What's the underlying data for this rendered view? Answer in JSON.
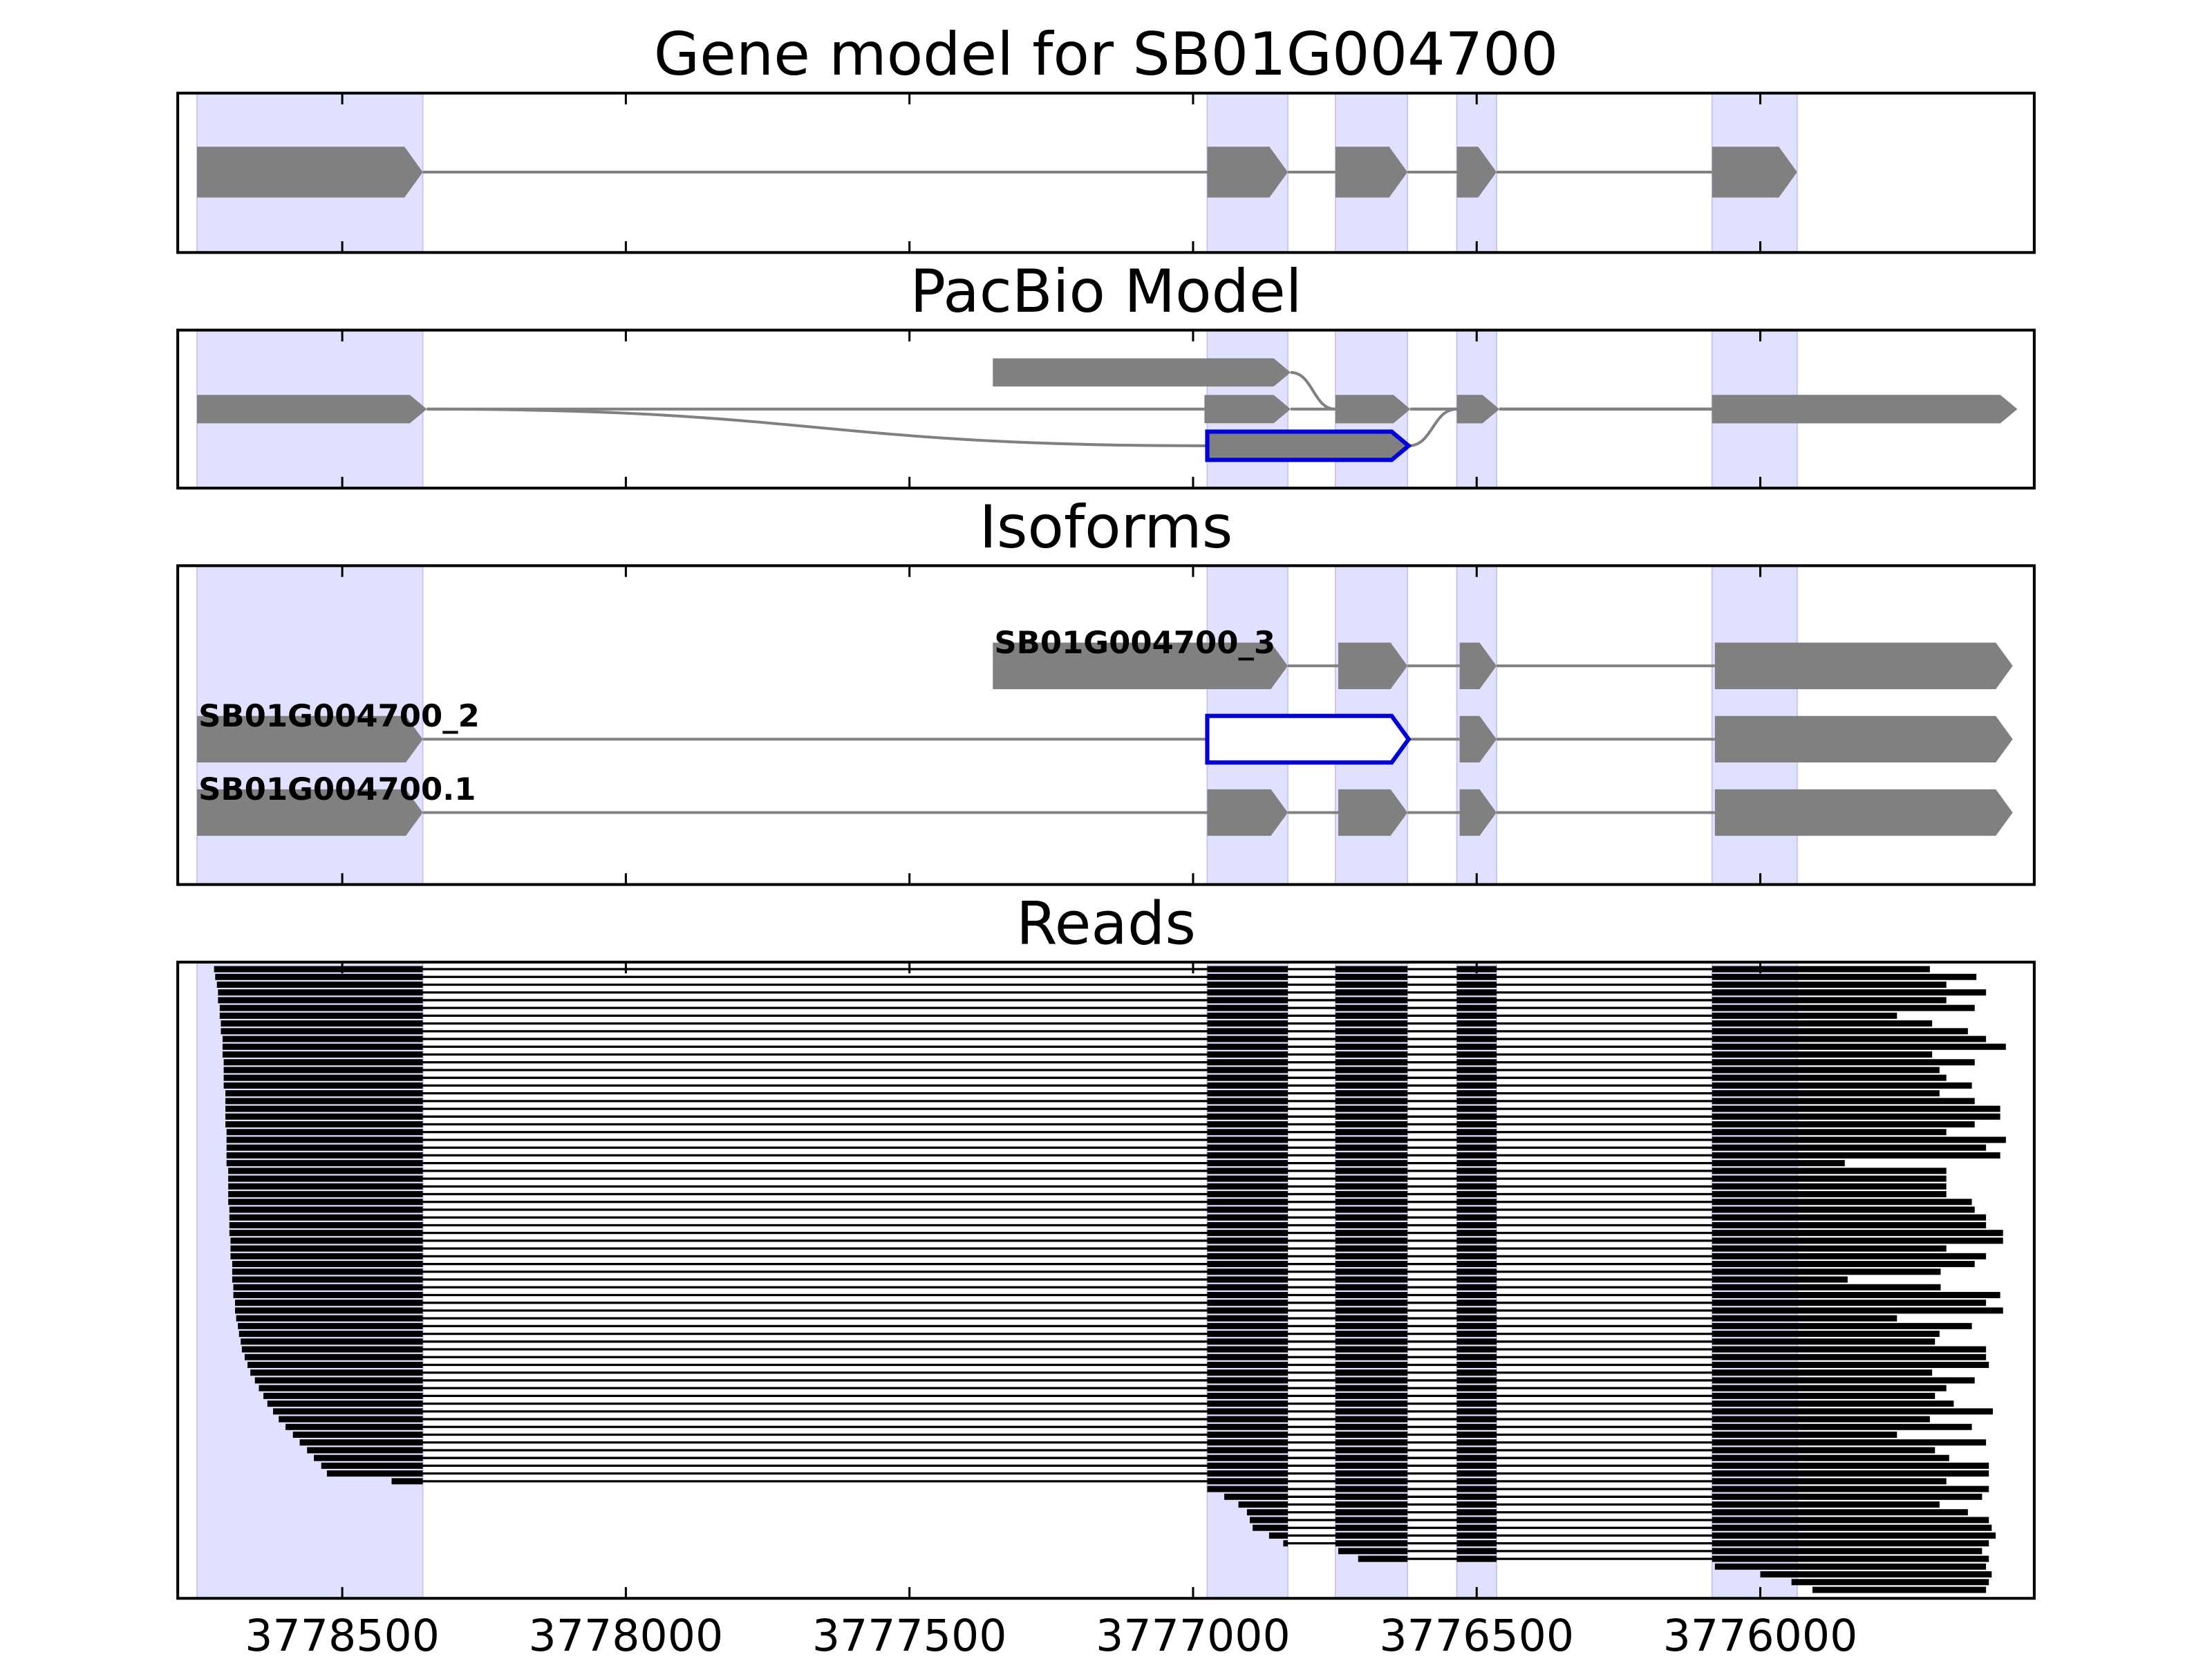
{
  "chart_data": {
    "type": "gene-model",
    "xlim": [
      3778790,
      3775517
    ],
    "xticks": [
      3778500,
      3778000,
      3777500,
      3777000,
      3776500,
      3776000
    ],
    "exon_color": "#808080",
    "shade_color": "#e0e0ff",
    "highlight_color": "#0000dd",
    "read_color": "#000000",
    "gene_model": {
      "title": "Gene model for SB01G004700",
      "exons": [
        [
          3778756,
          3778358
        ],
        [
          3776975,
          3776833
        ],
        [
          3776749,
          3776622
        ],
        [
          3776535,
          3776465
        ],
        [
          3776085,
          3775935
        ]
      ]
    },
    "pacbio_model": {
      "title": "PacBio Model",
      "paths": [
        [
          [
            3778756,
            3778351
          ],
          [
            3776980,
            3776828
          ],
          [
            3776749,
            3776617
          ],
          [
            3776535,
            3776460
          ],
          [
            3776085,
            3775547
          ]
        ],
        [
          [
            3777353,
            3776828
          ],
          [
            3776749,
            3776617
          ],
          [
            3776535,
            3776460
          ],
          [
            3776085,
            3775547
          ]
        ],
        [
          [
            3778756,
            3778351
          ],
          [
            3776975,
            3776620
          ],
          [
            3776535,
            3776460
          ],
          [
            3776085,
            3775547
          ]
        ]
      ],
      "highlight_exon": [
        3776975,
        3776620
      ]
    },
    "isoforms": {
      "title": "Isoforms",
      "items": [
        {
          "name": "SB01G004700_3",
          "exons": [
            [
              3777353,
              3776833
            ],
            [
              3776744,
              3776622
            ],
            [
              3776530,
              3776465
            ],
            [
              3776080,
              3775555
            ]
          ]
        },
        {
          "name": "SB01G004700_2",
          "exons": [
            [
              3778756,
              3778358
            ],
            [
              3776975,
              3776620
            ],
            [
              3776530,
              3776465
            ],
            [
              3776080,
              3775555
            ]
          ]
        },
        {
          "name": "SB01G004700.1",
          "exons": [
            [
              3778756,
              3778358
            ],
            [
              3776975,
              3776833
            ],
            [
              3776744,
              3776622
            ],
            [
              3776530,
              3776465
            ],
            [
              3776080,
              3775555
            ]
          ]
        }
      ]
    },
    "reads": {
      "title": "Reads",
      "starts": [
        3778726,
        3778724,
        3778721,
        3778719,
        3778719,
        3778716,
        3778716,
        3778714,
        3778714,
        3778711,
        3778711,
        3778711,
        3778709,
        3778709,
        3778709,
        3778709,
        3778706,
        3778706,
        3778706,
        3778706,
        3778706,
        3778704,
        3778704,
        3778704,
        3778704,
        3778704,
        3778701,
        3778701,
        3778701,
        3778701,
        3778701,
        3778699,
        3778699,
        3778699,
        3778699,
        3778697,
        3778697,
        3778697,
        3778694,
        3778694,
        3778694,
        3778692,
        3778692,
        3778689,
        3778689,
        3778687,
        3778684,
        3778682,
        3778679,
        3778677,
        3778672,
        3778667,
        3778662,
        3778654,
        3778647,
        3778639,
        3778632,
        3778622,
        3778612,
        3778600,
        3778587,
        3778575,
        3778562,
        3778550,
        3778537,
        3778527,
        3778413,
        3776978,
        3776945,
        3776920,
        3776905,
        3776900,
        3776895,
        3776866,
        3776841,
        3776744,
        3776709,
        3776080,
        3776000,
        3775945,
        3775908
      ],
      "ends": [
        3775701,
        3775619,
        3775672,
        3775602,
        3775672,
        3775622,
        3775759,
        3775697,
        3775634,
        3775602,
        3775567,
        3775697,
        3775622,
        3775684,
        3775672,
        3775627,
        3775684,
        3775622,
        3775577,
        3775577,
        3775622,
        3775672,
        3775567,
        3775602,
        3775577,
        3775851,
        3775672,
        3775672,
        3775672,
        3775672,
        3775627,
        3775622,
        3775602,
        3775602,
        3775572,
        3775572,
        3775672,
        3775602,
        3775622,
        3775682,
        3775846,
        3775682,
        3775577,
        3775602,
        3775572,
        3775759,
        3775627,
        3775684,
        3775692,
        3775602,
        3775602,
        3775597,
        3775697,
        3775622,
        3775672,
        3775692,
        3775659,
        3775590,
        3775701,
        3775627,
        3775759,
        3775602,
        3775692,
        3775667,
        3775597,
        3775597,
        3775672,
        3775597,
        3775609,
        3775684,
        3775634,
        3775597,
        3775592,
        3775585,
        3775597,
        3775609,
        3775597,
        3775602,
        3775592,
        3775597,
        3775602
      ]
    }
  }
}
